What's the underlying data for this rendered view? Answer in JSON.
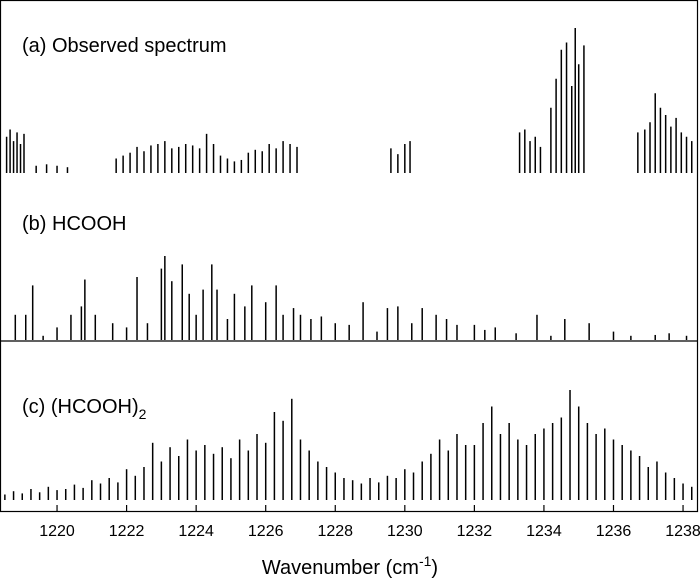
{
  "chart_data": {
    "type": "stacked-spectra",
    "xlabel": "Wavenumber (cm",
    "xlabel_superscript": "-1",
    "xlabel_end": ")",
    "xlim": [
      1218.36,
      1238.43
    ],
    "xticks": [
      1220,
      1222,
      1224,
      1226,
      1228,
      1230,
      1232,
      1234,
      1236,
      1238
    ],
    "panels": [
      {
        "title": "(a) Observed spectrum",
        "color": "#000000",
        "ylim": [
          0,
          1
        ],
        "x": [
          1218.55,
          1218.65,
          1218.75,
          1218.85,
          1218.95,
          1219.05,
          1219.4,
          1219.7,
          1220.0,
          1220.3,
          1221.7,
          1221.9,
          1222.1,
          1222.3,
          1222.5,
          1222.7,
          1222.9,
          1223.1,
          1223.3,
          1223.5,
          1223.7,
          1223.9,
          1224.1,
          1224.3,
          1224.5,
          1224.7,
          1224.9,
          1225.1,
          1225.3,
          1225.5,
          1225.7,
          1225.9,
          1226.1,
          1226.3,
          1226.5,
          1226.7,
          1226.9,
          1229.6,
          1229.8,
          1230.0,
          1230.15,
          1233.3,
          1233.45,
          1233.6,
          1233.75,
          1233.9,
          1234.2,
          1234.35,
          1234.5,
          1234.65,
          1234.8,
          1234.9,
          1235.0,
          1235.15,
          1236.7,
          1236.9,
          1237.05,
          1237.2,
          1237.35,
          1237.5,
          1237.65,
          1237.8,
          1237.95,
          1238.1,
          1238.25
        ],
        "values": [
          0.25,
          0.3,
          0.22,
          0.28,
          0.2,
          0.27,
          0.05,
          0.06,
          0.05,
          0.04,
          0.1,
          0.12,
          0.14,
          0.18,
          0.15,
          0.19,
          0.2,
          0.22,
          0.17,
          0.18,
          0.2,
          0.19,
          0.17,
          0.27,
          0.2,
          0.12,
          0.1,
          0.08,
          0.09,
          0.14,
          0.16,
          0.15,
          0.2,
          0.17,
          0.22,
          0.2,
          0.18,
          0.17,
          0.13,
          0.2,
          0.22,
          0.28,
          0.3,
          0.22,
          0.25,
          0.18,
          0.45,
          0.65,
          0.85,
          0.9,
          0.6,
          1.0,
          0.75,
          0.88,
          0.28,
          0.3,
          0.35,
          0.55,
          0.45,
          0.4,
          0.32,
          0.38,
          0.28,
          0.25,
          0.22
        ]
      },
      {
        "title": "(b) HCOOH",
        "color": "#000000",
        "ylim": [
          0,
          1
        ],
        "x": [
          1218.8,
          1219.1,
          1219.3,
          1219.6,
          1220.0,
          1220.4,
          1220.7,
          1220.8,
          1221.1,
          1221.6,
          1222.0,
          1222.3,
          1222.6,
          1223.0,
          1223.1,
          1223.3,
          1223.6,
          1223.8,
          1224.0,
          1224.2,
          1224.45,
          1224.6,
          1224.9,
          1225.1,
          1225.4,
          1225.6,
          1226.0,
          1226.3,
          1226.5,
          1226.8,
          1227.0,
          1227.3,
          1227.6,
          1228.0,
          1228.4,
          1228.8,
          1229.2,
          1229.5,
          1229.8,
          1230.2,
          1230.5,
          1230.9,
          1231.2,
          1231.5,
          1232.0,
          1232.3,
          1232.6,
          1233.2,
          1233.8,
          1234.2,
          1234.6,
          1235.3,
          1236.0,
          1236.5,
          1237.2,
          1237.6,
          1238.1
        ],
        "values": [
          0.3,
          0.3,
          0.65,
          0.05,
          0.15,
          0.3,
          0.4,
          0.72,
          0.3,
          0.2,
          0.15,
          0.75,
          0.2,
          0.85,
          1.0,
          0.7,
          0.9,
          0.55,
          0.3,
          0.6,
          0.9,
          0.6,
          0.25,
          0.55,
          0.4,
          0.65,
          0.45,
          0.65,
          0.3,
          0.38,
          0.3,
          0.25,
          0.28,
          0.2,
          0.18,
          0.45,
          0.1,
          0.38,
          0.4,
          0.2,
          0.38,
          0.3,
          0.25,
          0.18,
          0.18,
          0.12,
          0.15,
          0.08,
          0.3,
          0.05,
          0.25,
          0.2,
          0.1,
          0.05,
          0.06,
          0.08,
          0.05
        ]
      },
      {
        "title": "(c) (HCOOH)",
        "title_subscript": "2",
        "color": "#000000",
        "ylim": [
          0,
          1
        ],
        "x": [
          1218.5,
          1218.75,
          1219.0,
          1219.25,
          1219.5,
          1219.75,
          1220.0,
          1220.25,
          1220.5,
          1220.75,
          1221.0,
          1221.25,
          1221.5,
          1221.75,
          1222.0,
          1222.25,
          1222.5,
          1222.75,
          1223.0,
          1223.25,
          1223.5,
          1223.75,
          1224.0,
          1224.25,
          1224.5,
          1224.75,
          1225.0,
          1225.25,
          1225.5,
          1225.75,
          1226.0,
          1226.25,
          1226.5,
          1226.75,
          1227.0,
          1227.25,
          1227.5,
          1227.75,
          1228.0,
          1228.25,
          1228.5,
          1228.75,
          1229.0,
          1229.25,
          1229.5,
          1229.75,
          1230.0,
          1230.25,
          1230.5,
          1230.75,
          1231.0,
          1231.25,
          1231.5,
          1231.75,
          1232.0,
          1232.25,
          1232.5,
          1232.75,
          1233.0,
          1233.25,
          1233.5,
          1233.75,
          1234.0,
          1234.25,
          1234.5,
          1234.75,
          1235.0,
          1235.25,
          1235.5,
          1235.75,
          1236.0,
          1236.25,
          1236.5,
          1236.75,
          1237.0,
          1237.25,
          1237.5,
          1237.75,
          1238.0,
          1238.25
        ],
        "values": [
          0.05,
          0.08,
          0.06,
          0.1,
          0.07,
          0.12,
          0.09,
          0.1,
          0.14,
          0.11,
          0.18,
          0.15,
          0.2,
          0.16,
          0.28,
          0.22,
          0.3,
          0.52,
          0.35,
          0.48,
          0.4,
          0.55,
          0.45,
          0.5,
          0.42,
          0.48,
          0.38,
          0.55,
          0.45,
          0.6,
          0.52,
          0.8,
          0.72,
          0.92,
          0.55,
          0.45,
          0.35,
          0.3,
          0.25,
          0.2,
          0.18,
          0.15,
          0.2,
          0.16,
          0.22,
          0.2,
          0.28,
          0.25,
          0.35,
          0.42,
          0.55,
          0.45,
          0.6,
          0.5,
          0.5,
          0.7,
          0.85,
          0.6,
          0.7,
          0.55,
          0.5,
          0.6,
          0.65,
          0.7,
          0.75,
          1.0,
          0.85,
          0.7,
          0.6,
          0.65,
          0.55,
          0.5,
          0.45,
          0.4,
          0.3,
          0.35,
          0.25,
          0.2,
          0.15,
          0.12
        ]
      }
    ]
  }
}
